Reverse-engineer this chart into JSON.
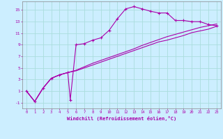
{
  "xlabel": "Windchill (Refroidissement éolien,°C)",
  "xlim": [
    -0.5,
    23.5
  ],
  "ylim": [
    -2.0,
    16.5
  ],
  "xticks": [
    0,
    1,
    2,
    3,
    4,
    5,
    6,
    7,
    8,
    9,
    10,
    11,
    12,
    13,
    14,
    15,
    16,
    17,
    18,
    19,
    20,
    21,
    22,
    23
  ],
  "yticks": [
    -1,
    1,
    3,
    5,
    7,
    9,
    11,
    13,
    15
  ],
  "bg_color": "#cceeff",
  "grid_color": "#aadddd",
  "line_color": "#aa00aa",
  "curve1_x": [
    0,
    1,
    2,
    3,
    4,
    5,
    5.3,
    6,
    7,
    8,
    9,
    10,
    11,
    12,
    13,
    14,
    15,
    16,
    17,
    18,
    19,
    20,
    21,
    22,
    23
  ],
  "curve1_y": [
    1,
    -0.8,
    1.5,
    3.2,
    3.8,
    4.2,
    -0.5,
    9.0,
    9.2,
    9.8,
    10.2,
    11.5,
    13.5,
    15.2,
    15.6,
    15.2,
    14.8,
    14.5,
    14.5,
    13.2,
    13.2,
    13.0,
    13.0,
    12.5,
    12.3
  ],
  "curve2_x": [
    0,
    1,
    2,
    3,
    4,
    5,
    6,
    7,
    8,
    9,
    10,
    11,
    12,
    13,
    14,
    15,
    16,
    17,
    18,
    19,
    20,
    21,
    22,
    23
  ],
  "curve2_y": [
    1,
    -0.8,
    1.5,
    3.2,
    3.8,
    4.2,
    4.5,
    5.0,
    5.5,
    6.0,
    6.5,
    7.0,
    7.5,
    8.0,
    8.5,
    9.0,
    9.5,
    9.8,
    10.2,
    10.6,
    11.1,
    11.4,
    11.7,
    12.2
  ],
  "curve3_x": [
    0,
    1,
    2,
    3,
    4,
    5,
    6,
    7,
    8,
    9,
    10,
    11,
    12,
    13,
    14,
    15,
    16,
    17,
    18,
    19,
    20,
    21,
    22,
    23
  ],
  "curve3_y": [
    1,
    -0.8,
    1.5,
    3.2,
    3.8,
    4.2,
    4.6,
    5.2,
    5.8,
    6.3,
    6.8,
    7.3,
    7.8,
    8.3,
    8.9,
    9.4,
    9.9,
    10.4,
    10.8,
    11.2,
    11.6,
    12.0,
    12.3,
    12.6
  ]
}
